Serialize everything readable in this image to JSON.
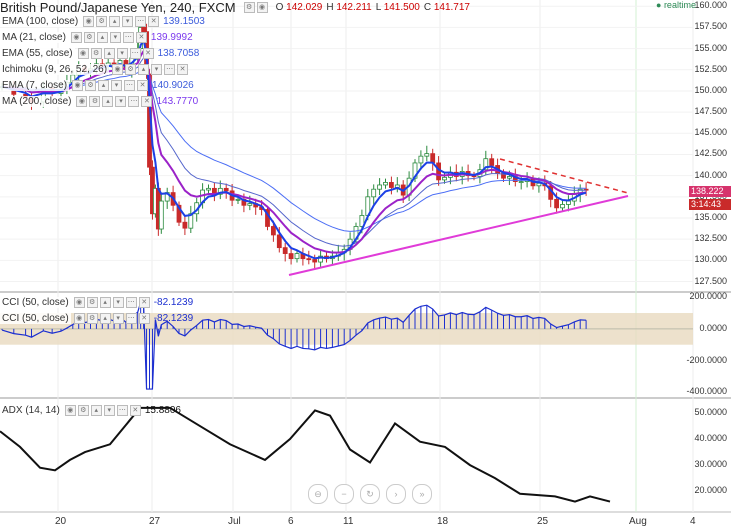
{
  "header": {
    "title": "British Pound/Japanese Yen, 240, FXCM",
    "ohlc": [
      {
        "k": "O",
        "v": "142.029"
      },
      {
        "k": "H",
        "v": "142.211"
      },
      {
        "k": "L",
        "v": "141.500"
      },
      {
        "k": "C",
        "v": "141.717"
      }
    ],
    "realtime": "realtime"
  },
  "indicators": [
    {
      "name": "EMA (100, close)",
      "value": "139.1503",
      "color": "#3b5bdb"
    },
    {
      "name": "MA (21, close)",
      "value": "139.9992",
      "color": "#7c3aed"
    },
    {
      "name": "EMA (55, close)",
      "value": "138.7058",
      "color": "#3b5bdb"
    },
    {
      "name": "Ichimoku (9, 26, 52, 26)",
      "value": "",
      "color": "#3b5bdb"
    },
    {
      "name": "EMA (7, close)",
      "value": "140.9026",
      "color": "#3b5bdb"
    },
    {
      "name": "MA (200, close)",
      "value": "143.7770",
      "color": "#7c3aed"
    }
  ],
  "cci_panel": {
    "rows": [
      {
        "name": "CCI (50, close)",
        "value": "-82.1239"
      },
      {
        "name": "CCI (50, close)",
        "value": "-82.1239"
      }
    ]
  },
  "adx_panel": {
    "name": "ADX (14, 14)",
    "value": "15.8806"
  },
  "price_tags": [
    {
      "text": "138.222",
      "color": "#d6336c"
    },
    {
      "text": "3:14:43",
      "color": "#c92a2a"
    }
  ],
  "nav_buttons": [
    "zoom-out",
    "minus",
    "reset",
    "forward",
    "fast-forward"
  ],
  "colors": {
    "up": "#2b8a3e",
    "down": "#c92a2a",
    "ema_blue": "#1c40e6",
    "ma_purple": "#9b22c8",
    "ema100": "#4c6ef5",
    "trend": "#e03bd8",
    "dashed": "#e03131",
    "cci_band": "#e8d9bf",
    "cci": "#1c2fd0",
    "adx": "#111"
  },
  "chart_data": [
    {
      "type": "candlestick",
      "title": "British Pound/Japanese Yen, 240, FXCM",
      "x_ticks": [
        "20",
        "27",
        "Jul",
        "6",
        "11",
        "18",
        "25",
        "Aug",
        "4"
      ],
      "y_ticks": [
        "160.000",
        "157.500",
        "155.000",
        "152.500",
        "150.000",
        "147.500",
        "145.000",
        "142.500",
        "140.000",
        "137.500",
        "135.000",
        "132.500",
        "130.000",
        "127.500"
      ],
      "ylim": [
        126.5,
        160.5
      ],
      "close_series": [
        [
          0,
          150.5
        ],
        [
          4,
          149.6
        ],
        [
          8,
          149.2
        ],
        [
          10,
          148.7
        ],
        [
          14,
          150.3
        ],
        [
          17,
          149.7
        ],
        [
          20,
          150.2
        ],
        [
          22,
          151.0
        ],
        [
          24,
          151.9
        ],
        [
          26,
          152.7
        ],
        [
          28,
          152.4
        ],
        [
          30,
          152.6
        ],
        [
          32,
          153.2
        ],
        [
          34,
          152.9
        ],
        [
          36,
          153.3
        ],
        [
          38,
          152.8
        ],
        [
          40,
          153.6
        ],
        [
          42,
          152.5
        ],
        [
          44,
          153.9
        ],
        [
          46,
          155.0
        ],
        [
          47,
          157.5
        ],
        [
          48,
          157.0
        ],
        [
          49,
          152.0
        ],
        [
          50,
          141.0
        ],
        [
          51,
          135.5
        ],
        [
          52,
          138.5
        ],
        [
          53,
          133.7
        ],
        [
          54,
          137.0
        ],
        [
          56,
          138.0
        ],
        [
          58,
          136.5
        ],
        [
          60,
          134.5
        ],
        [
          62,
          133.8
        ],
        [
          64,
          135.5
        ],
        [
          66,
          136.8
        ],
        [
          68,
          138.3
        ],
        [
          70,
          138.5
        ],
        [
          72,
          137.8
        ],
        [
          74,
          138.5
        ],
        [
          76,
          138.2
        ],
        [
          78,
          137.1
        ],
        [
          80,
          137.2
        ],
        [
          82,
          136.5
        ],
        [
          84,
          136.7
        ],
        [
          86,
          136.3
        ],
        [
          88,
          136.0
        ],
        [
          90,
          134.0
        ],
        [
          92,
          133.0
        ],
        [
          94,
          131.5
        ],
        [
          96,
          130.8
        ],
        [
          98,
          130.2
        ],
        [
          100,
          130.8
        ],
        [
          102,
          130.2
        ],
        [
          104,
          130.1
        ],
        [
          106,
          129.8
        ],
        [
          108,
          130.5
        ],
        [
          110,
          130.2
        ],
        [
          112,
          130.5
        ],
        [
          114,
          130.9
        ],
        [
          116,
          131.3
        ],
        [
          118,
          132.5
        ],
        [
          120,
          134.0
        ],
        [
          122,
          135.3
        ],
        [
          124,
          137.5
        ],
        [
          126,
          138.4
        ],
        [
          128,
          138.9
        ],
        [
          130,
          139.2
        ],
        [
          132,
          138.6
        ],
        [
          134,
          138.9
        ],
        [
          136,
          137.7
        ],
        [
          138,
          139.7
        ],
        [
          140,
          141.5
        ],
        [
          142,
          142.3
        ],
        [
          144,
          142.6
        ],
        [
          146,
          141.5
        ],
        [
          148,
          139.5
        ],
        [
          150,
          139.8
        ],
        [
          152,
          140.4
        ],
        [
          154,
          139.9
        ],
        [
          156,
          140.5
        ],
        [
          158,
          140.0
        ],
        [
          160,
          139.9
        ],
        [
          162,
          140.7
        ],
        [
          164,
          142.0
        ],
        [
          166,
          141.2
        ],
        [
          168,
          140.3
        ],
        [
          170,
          139.7
        ],
        [
          172,
          139.9
        ],
        [
          174,
          139.3
        ],
        [
          176,
          139.3
        ],
        [
          178,
          139.6
        ],
        [
          180,
          138.8
        ],
        [
          182,
          139.1
        ],
        [
          184,
          138.8
        ],
        [
          186,
          137.2
        ],
        [
          188,
          136.2
        ],
        [
          190,
          136.6
        ],
        [
          192,
          137.0
        ],
        [
          194,
          137.8
        ],
        [
          196,
          138.4
        ],
        [
          198,
          138.3
        ]
      ]
    },
    {
      "type": "line",
      "title": "CCI (50, close)",
      "y_ticks": [
        "200.0000",
        "0.0000",
        "-200.0000",
        "-400.0000"
      ],
      "ylim": [
        -430,
        220
      ],
      "band": [
        -100,
        100
      ]
    },
    {
      "type": "line",
      "title": "ADX (14, 14)",
      "y_ticks": [
        "50.0000",
        "40.0000",
        "30.0000",
        "20.0000"
      ],
      "ylim": [
        12,
        55
      ]
    }
  ]
}
